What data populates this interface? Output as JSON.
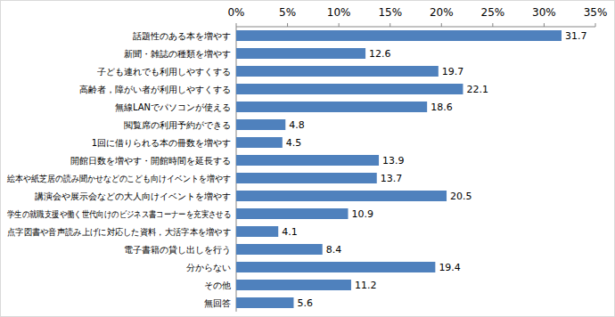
{
  "chart_data": {
    "type": "bar",
    "orientation": "horizontal",
    "categories": [
      "話題性のある本を増やす",
      "新聞・雑誌の種類を増やす",
      "子ども連れでも利用しやすくする",
      "高齢者，障がい者が利用しやすくする",
      "無線LANでパソコンが使える",
      "閲覧席の利用予約ができる",
      "1回に借りられる本の冊数を増やす",
      "開館日数を増やす・開館時間を延長する",
      "絵本や紙芝居の読み聞かせなどのこども向けイベントを増やす",
      "講演会や展示会などの大人向けイベントを増やす",
      "学生の就職支援や働く世代向けのビジネス書コーナーを充実させる",
      "点字図書や音声読み上げに対応した資料，大活字本を増やす",
      "電子書籍の貸し出しを行う",
      "分からない",
      "その他",
      "無回答"
    ],
    "values": [
      31.7,
      12.6,
      19.7,
      22.1,
      18.6,
      4.8,
      4.5,
      13.9,
      13.7,
      20.5,
      10.9,
      4.1,
      8.4,
      19.4,
      11.2,
      5.6
    ],
    "color": "#4f81bd",
    "xlim": [
      0,
      35
    ],
    "xticks": [
      {
        "value": 0,
        "label": "0%"
      },
      {
        "value": 5,
        "label": "5%"
      },
      {
        "value": 10,
        "label": "10%"
      },
      {
        "value": 15,
        "label": "15%"
      },
      {
        "value": 20,
        "label": "20%"
      },
      {
        "value": 25,
        "label": "25%"
      },
      {
        "value": 30,
        "label": "30%"
      },
      {
        "value": 35,
        "label": "35%"
      }
    ],
    "grid": false,
    "data_labels": true
  }
}
